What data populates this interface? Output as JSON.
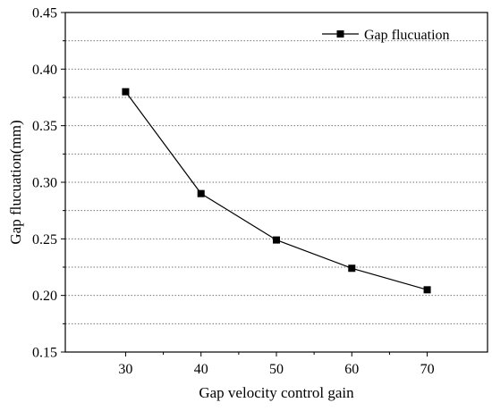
{
  "chart_data": {
    "type": "line",
    "title": "",
    "xlabel": "Gap velocity control gain",
    "ylabel": "Gap flucuation(mm)",
    "x": [
      30,
      40,
      50,
      60,
      70
    ],
    "series": [
      {
        "name": "Gap flucuation",
        "values": [
          0.38,
          0.29,
          0.249,
          0.224,
          0.205
        ],
        "marker": "square",
        "color": "#000000"
      }
    ],
    "xlim": [
      22,
      78
    ],
    "ylim": [
      0.15,
      0.45
    ],
    "xticks": [
      30,
      40,
      50,
      60,
      70
    ],
    "xtick_labels": [
      "30",
      "40",
      "50",
      "60",
      "70"
    ],
    "yticks": [
      0.15,
      0.2,
      0.25,
      0.3,
      0.35,
      0.4,
      0.45
    ],
    "ytick_labels": [
      "0.15",
      "0.20",
      "0.25",
      "0.30",
      "0.35",
      "0.40",
      "0.45"
    ],
    "grid": "horizontal dotted",
    "legend_position": "top-right"
  }
}
